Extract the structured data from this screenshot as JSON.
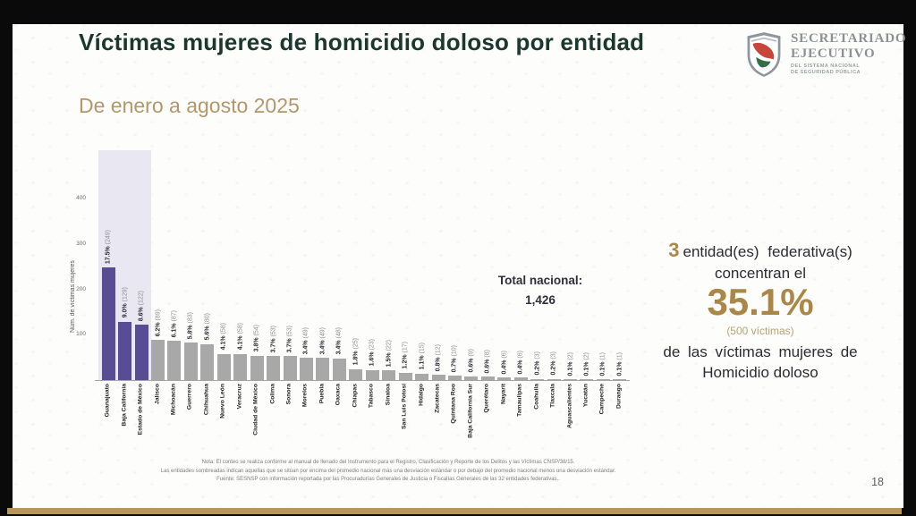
{
  "slide": {
    "title": "Víctimas mujeres de homicidio doloso por entidad",
    "subtitle": "De enero a agosto 2025",
    "page_number": "18"
  },
  "logo": {
    "line1": "SECRETARIADO",
    "line2": "EJECUTIVO",
    "sub1": "DEL SISTEMA NACIONAL",
    "sub2": "DE SEGURIDAD PÚBLICA"
  },
  "chart_data": {
    "type": "bar",
    "ylabel": "Núm. de víctimas mujeres",
    "yticks": [
      100,
      200,
      300,
      400
    ],
    "ylim": [
      0,
      430
    ],
    "grid": false,
    "categories": [
      "Guanajuato",
      "Baja California",
      "Estado de México",
      "Jalisco",
      "Michoacán",
      "Guerrero",
      "Chihuahua",
      "Nuevo León",
      "Veracruz",
      "Ciudad de México",
      "Colima",
      "Sonora",
      "Morelos",
      "Puebla",
      "Oaxaca",
      "Chiapas",
      "Tabasco",
      "Sinaloa",
      "San Luis Potosí",
      "Hidalgo",
      "Zacatecas",
      "Quintana Roo",
      "Baja California Sur",
      "Querétaro",
      "Nayarit",
      "Tamaulipas",
      "Coahuila",
      "Tlaxcala",
      "Aguascalientes",
      "Yucatán",
      "Campeche",
      "Durango"
    ],
    "values": [
      249,
      129,
      122,
      89,
      87,
      83,
      80,
      58,
      58,
      54,
      53,
      53,
      49,
      49,
      48,
      25,
      23,
      22,
      17,
      15,
      12,
      10,
      9,
      8,
      6,
      6,
      3,
      3,
      2,
      2,
      1,
      1
    ],
    "pct_labels": [
      "17.5%",
      "9.0%",
      "8.6%",
      "6.2%",
      "6.1%",
      "5.8%",
      "5.6%",
      "4.1%",
      "4.1%",
      "3.8%",
      "3.7%",
      "3.7%",
      "3.4%",
      "3.4%",
      "3.4%",
      "1.8%",
      "1.6%",
      "1.5%",
      "1.2%",
      "1.1%",
      "0.8%",
      "0.7%",
      "0.6%",
      "0.6%",
      "0.4%",
      "0.4%",
      "0.2%",
      "0.2%",
      "0.1%",
      "0.1%",
      "0.1%",
      "0.1%"
    ],
    "highlighted_indices": [
      0,
      1,
      2
    ],
    "colors": {
      "bar_highlight": "#584d94",
      "bar_normal": "#a8a8a8",
      "highlight_band": "#e9e7f2"
    }
  },
  "total_box": {
    "label": "Total nacional:",
    "value": "1,426"
  },
  "callout": {
    "count": "3",
    "line1_rest": "entidad(es) federativa(s)",
    "line2": "concentran el",
    "pct": "35.1%",
    "victims": "(500 víctimas)",
    "line3": "de las víctimas mujeres de",
    "line4": "Homicidio doloso"
  },
  "footnotes": {
    "line1": "Nota: El conteo se realiza conforme al manual de llenado del Instrumento para el Registro, Clasificación y Reporte de los Delitos y las Víctimas CNSP/38/15.",
    "line2": "Las entidades sombreadas indican aquellas que se sitúan por encima del promedio nacional más una desviación estándar o por debajo del promedio nacional menos una desviación estándar.",
    "line3": "Fuente: SESNSP con información reportada por las Procuradurías Generales de Justicia o Fiscalías Generales de las 32 entidades federativas.."
  }
}
